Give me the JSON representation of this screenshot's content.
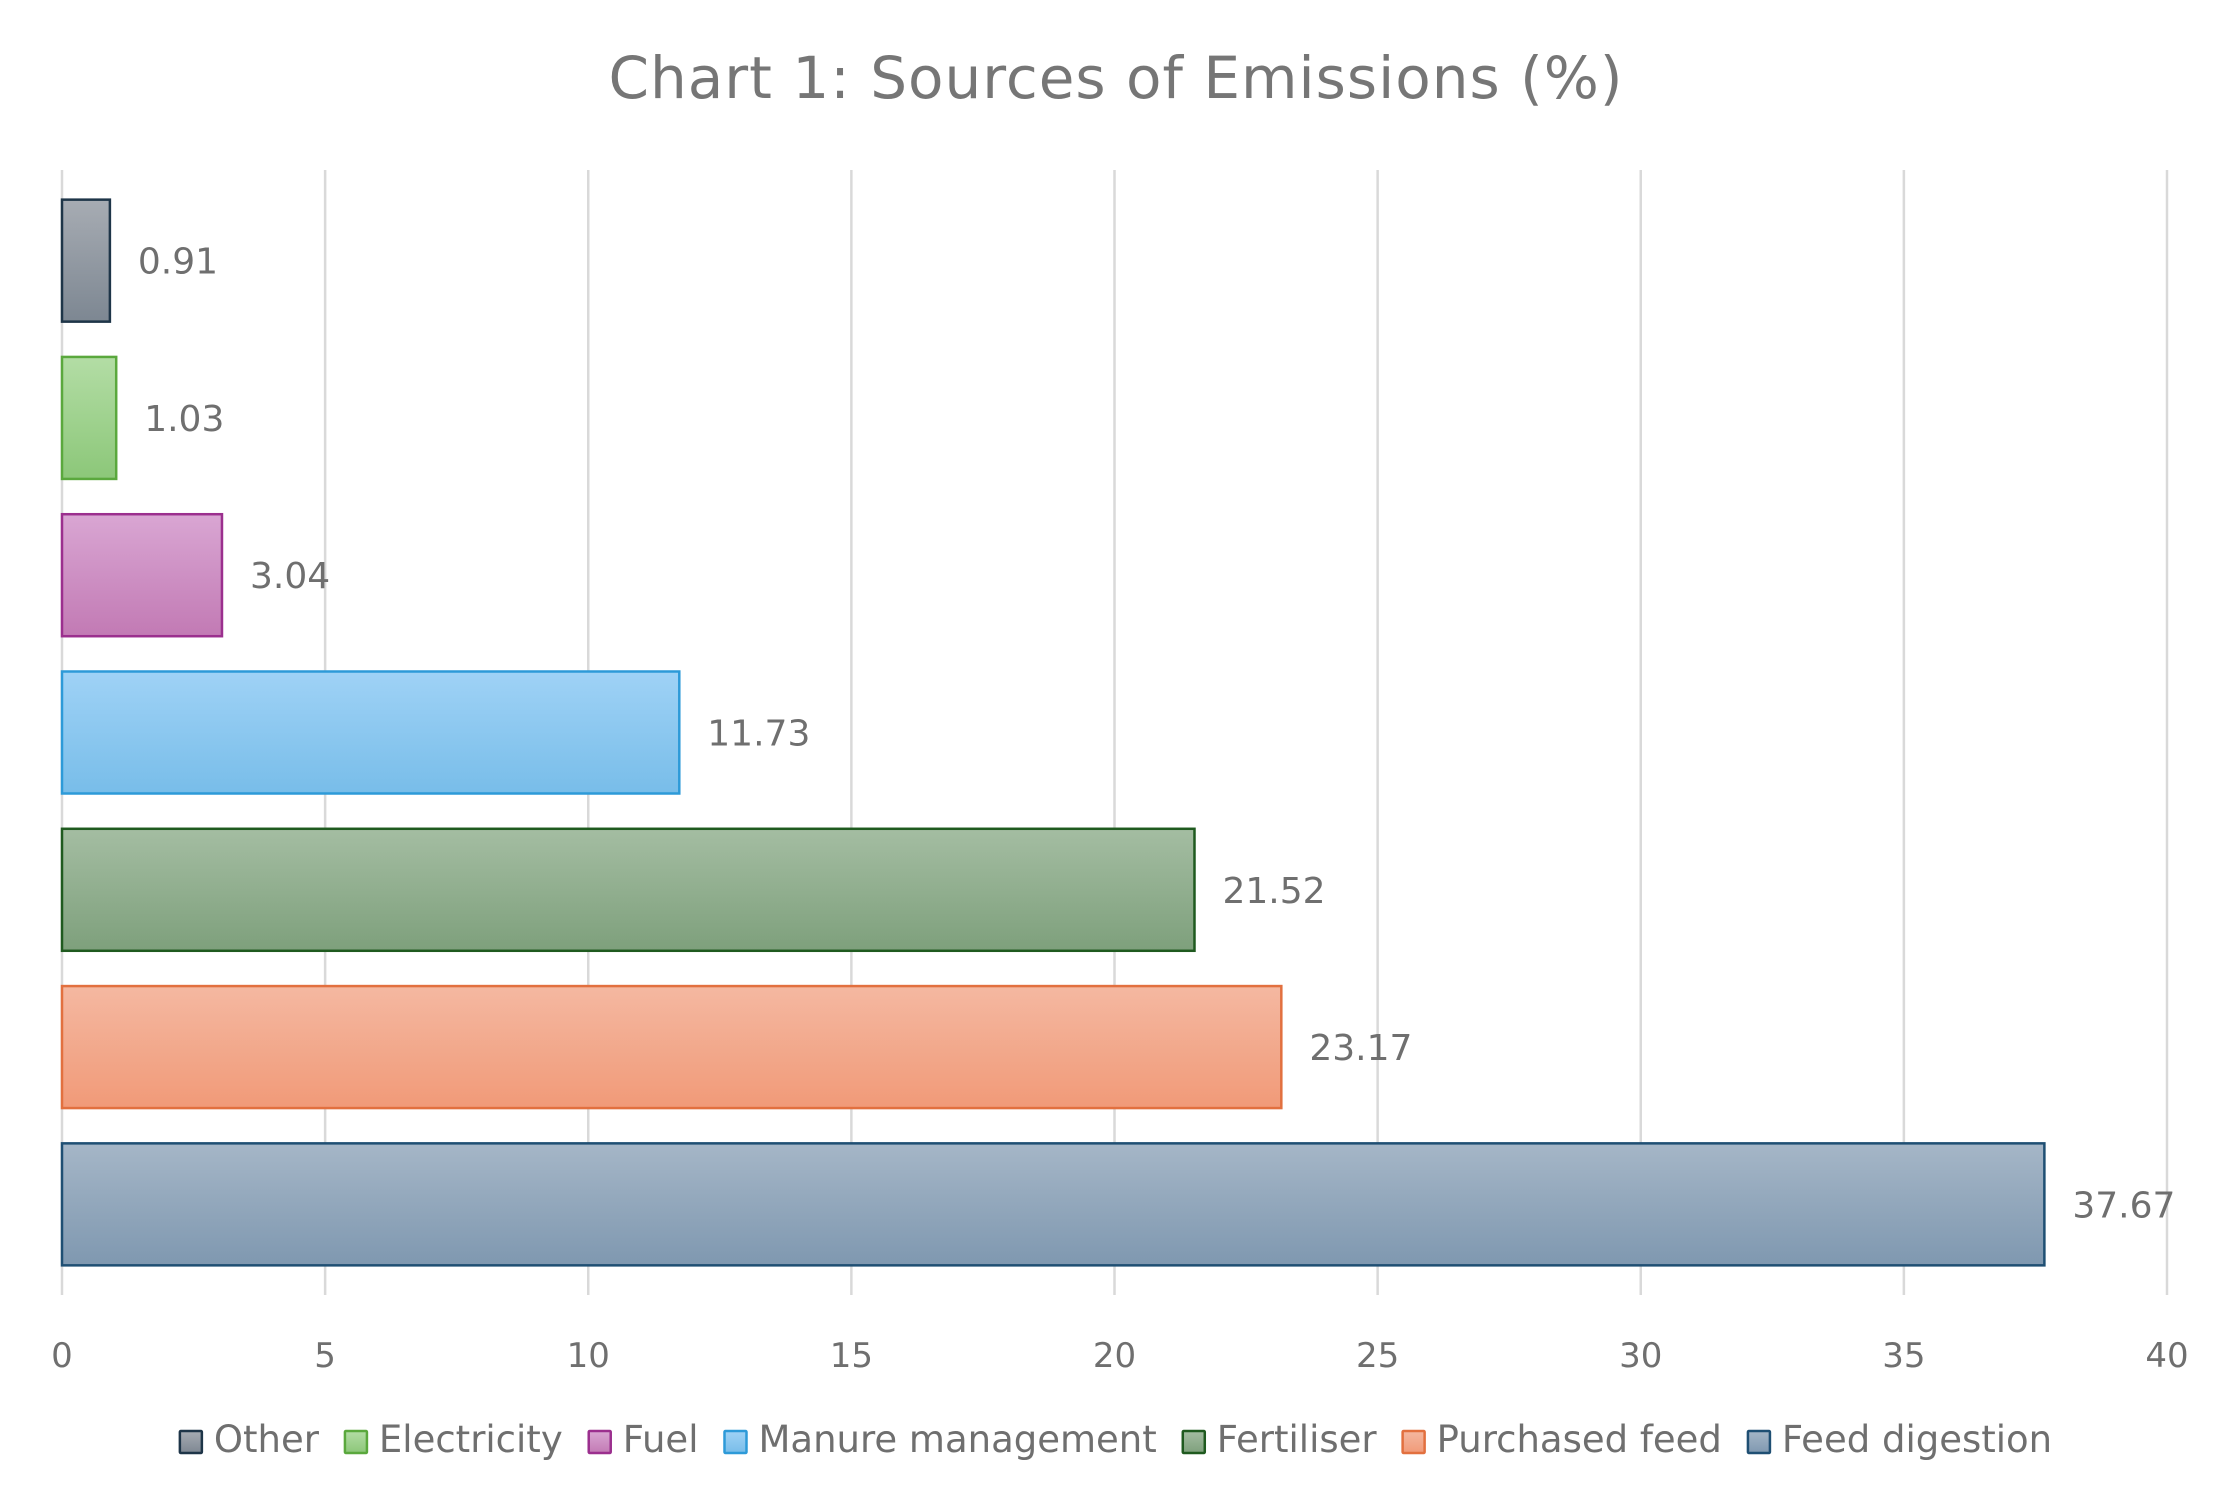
{
  "chart_data": {
    "type": "bar",
    "orientation": "horizontal",
    "title": "Chart 1: Sources of Emissions (%)",
    "xlabel": "",
    "ylabel": "",
    "xlim": [
      0,
      40
    ],
    "x_ticks": [
      0,
      5,
      10,
      15,
      20,
      25,
      30,
      35,
      40
    ],
    "grid": true,
    "legend_position": "bottom",
    "series": [
      {
        "name": "Other",
        "value": 0.91,
        "label": "0.91",
        "fill_top": "#a7acb3",
        "fill_bottom": "#7d8792",
        "stroke": "#1e3548"
      },
      {
        "name": "Electricity",
        "value": 1.03,
        "label": "1.03",
        "fill_top": "#b3dda5",
        "fill_bottom": "#8cc779",
        "stroke": "#5aa83d"
      },
      {
        "name": "Fuel",
        "value": 3.04,
        "label": "3.04",
        "fill_top": "#d9a6d3",
        "fill_bottom": "#c27ab4",
        "stroke": "#9b2f8e"
      },
      {
        "name": "Manure management",
        "value": 11.73,
        "label": "11.73",
        "fill_top": "#9fd2f6",
        "fill_bottom": "#78bde9",
        "stroke": "#2d9ad8"
      },
      {
        "name": "Fertiliser",
        "value": 21.52,
        "label": "21.52",
        "fill_top": "#a4bda2",
        "fill_bottom": "#7ea07c",
        "stroke": "#1f5a1f"
      },
      {
        "name": "Purchased feed",
        "value": 23.17,
        "label": "23.17",
        "fill_top": "#f4b8a1",
        "fill_bottom": "#f19a78",
        "stroke": "#e2703f"
      },
      {
        "name": "Feed digestion",
        "value": 37.67,
        "label": "37.67",
        "fill_top": "#a5b6c7",
        "fill_bottom": "#7f98b0",
        "stroke": "#1f4f73"
      }
    ]
  }
}
